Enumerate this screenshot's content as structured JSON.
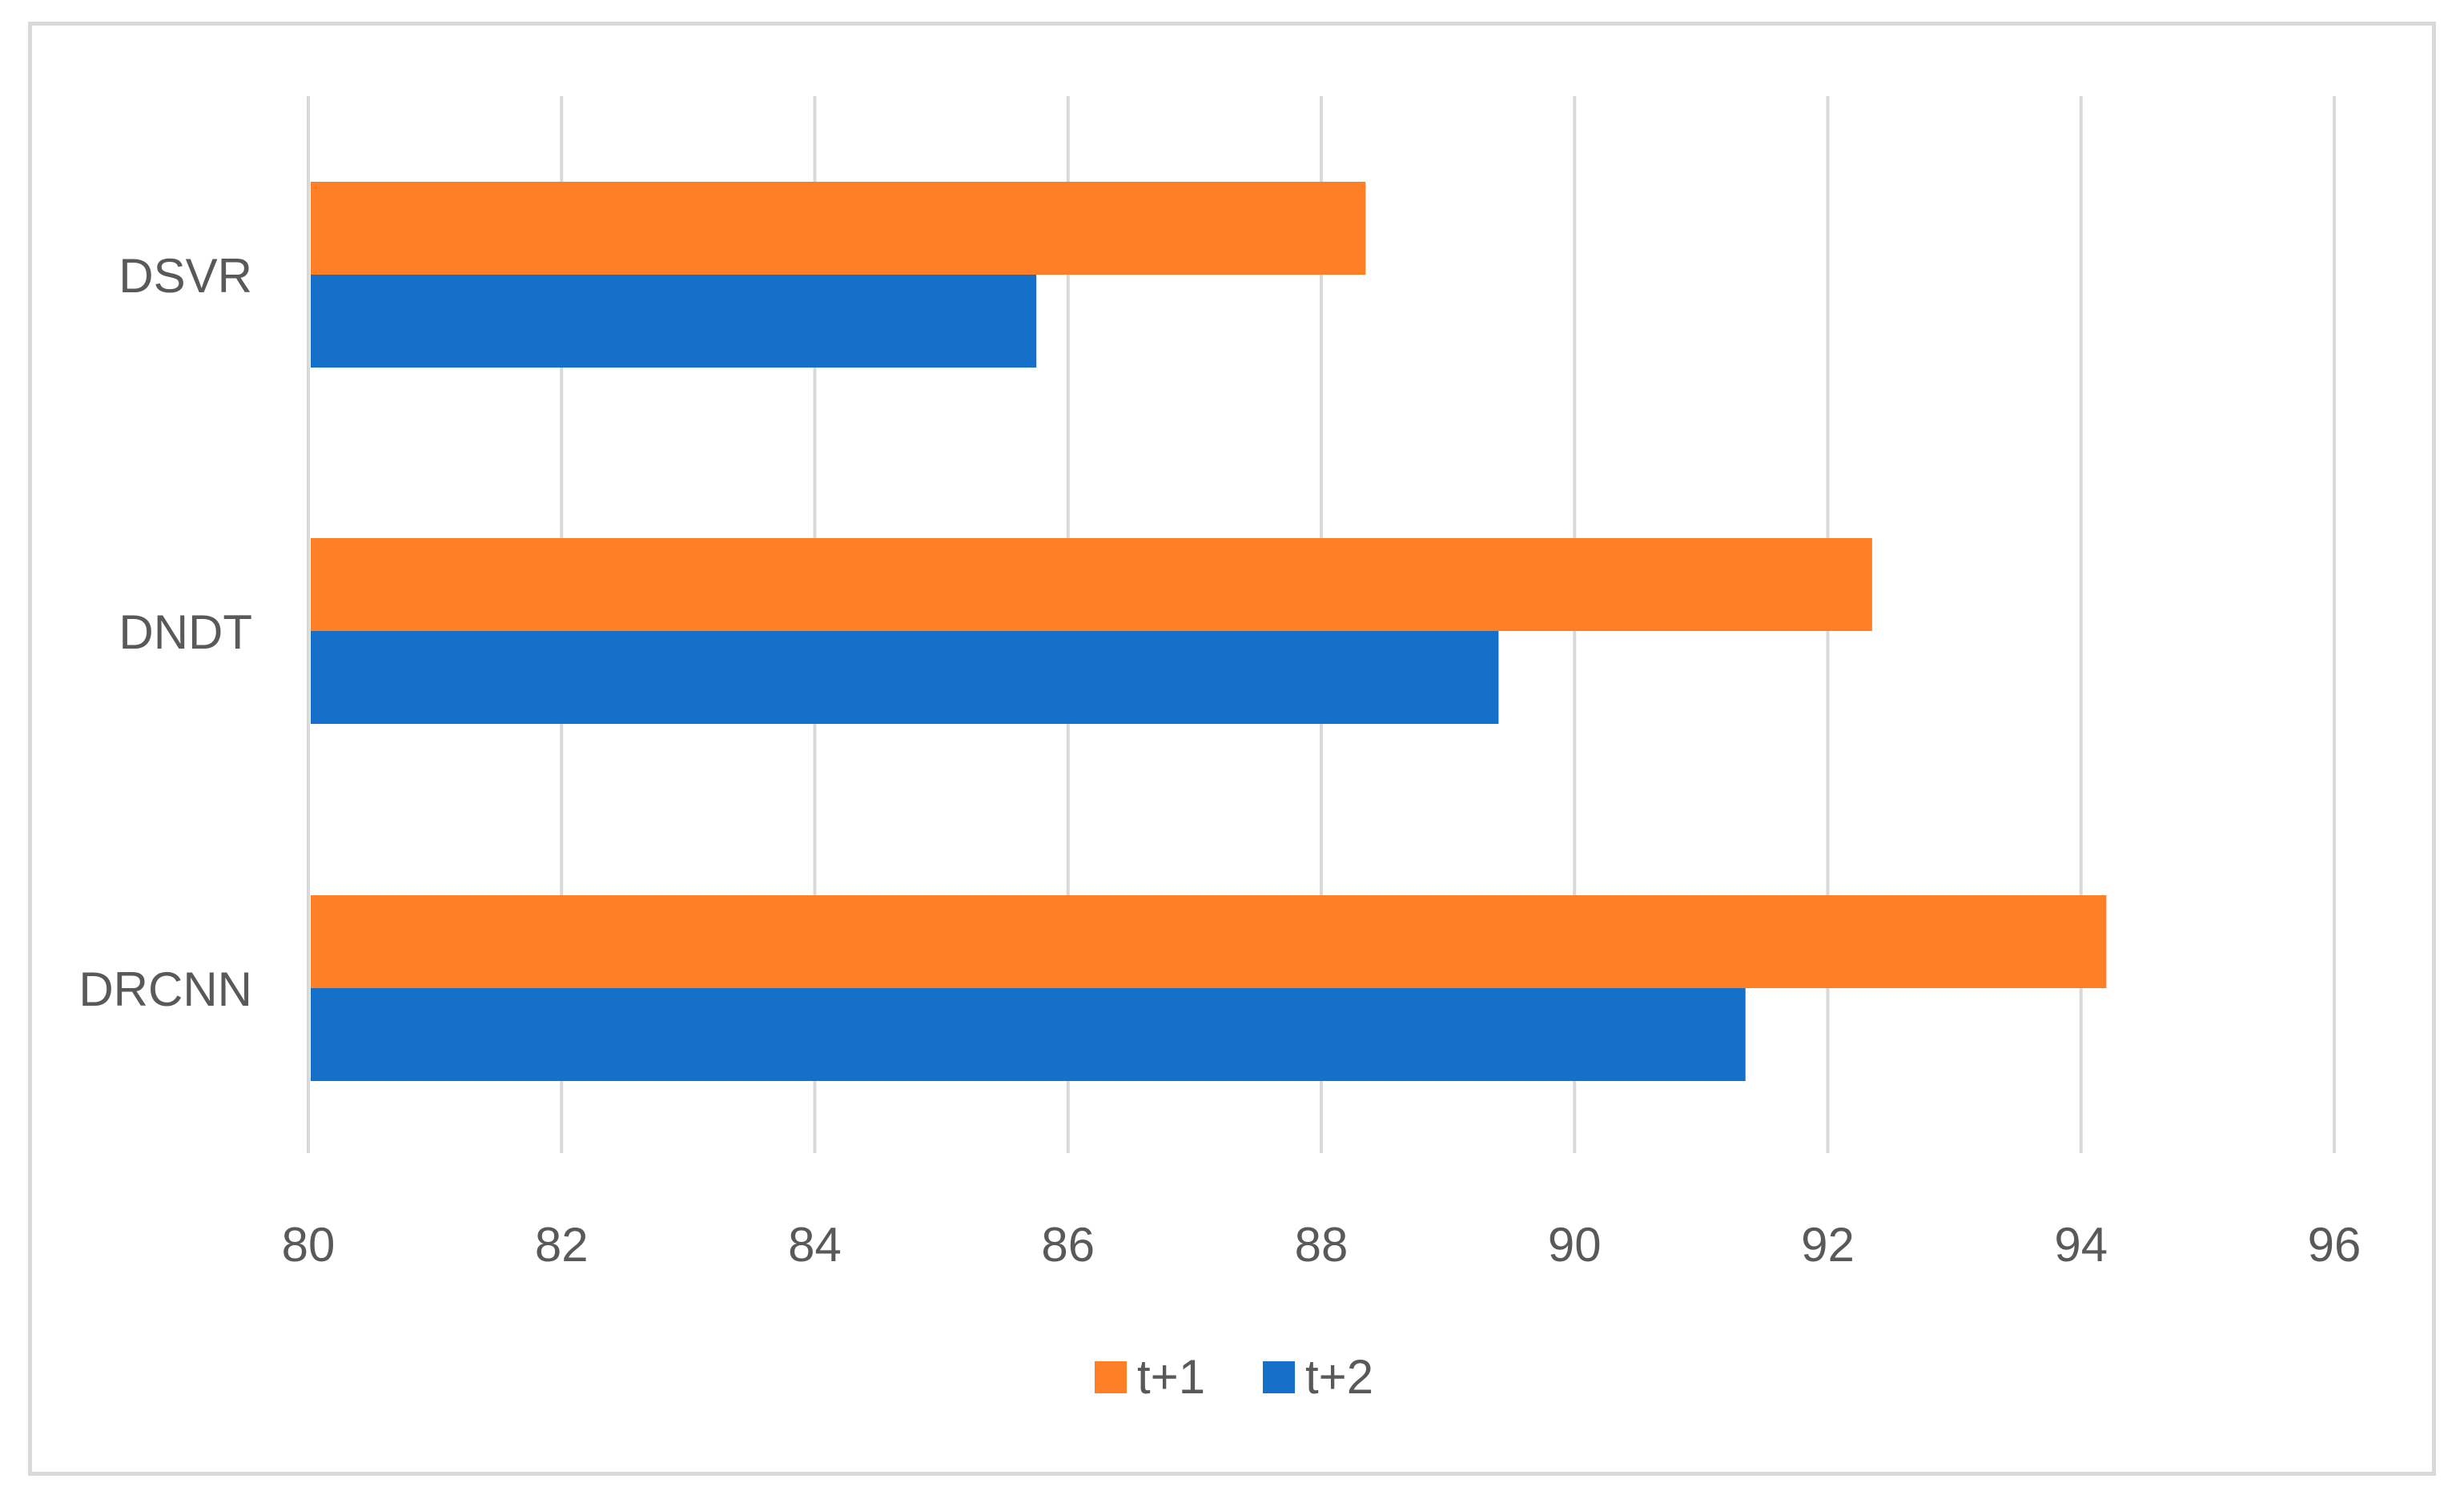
{
  "chart_data": {
    "type": "bar",
    "orientation": "horizontal",
    "categories": [
      "DSVR",
      "DNDT",
      "DRCNN"
    ],
    "series": [
      {
        "name": "t+1",
        "color": "#FF7F27",
        "values": [
          88.35,
          92.35,
          94.2
        ]
      },
      {
        "name": "t+2",
        "color": "#1570C9",
        "values": [
          85.75,
          89.4,
          91.35
        ]
      }
    ],
    "xlim": [
      80,
      96
    ],
    "x_ticks": [
      80,
      82,
      84,
      86,
      88,
      90,
      92,
      94,
      96
    ],
    "x_tick_labels": [
      "80",
      "82",
      "84",
      "86",
      "88",
      "90",
      "92",
      "94",
      "96"
    ],
    "grid": true,
    "grid_color": "#d9d9d9",
    "text_color": "#595959",
    "legend_position": "bottom",
    "title": "",
    "xlabel": "",
    "ylabel": ""
  }
}
